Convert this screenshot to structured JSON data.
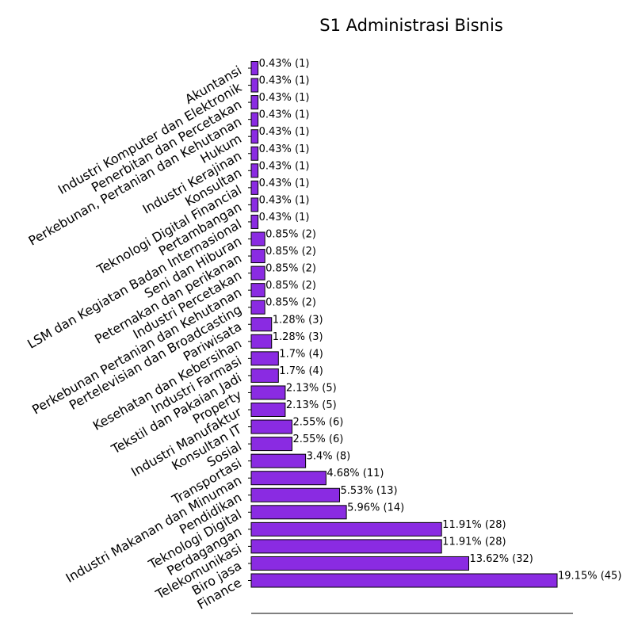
{
  "chart_data": {
    "type": "bar",
    "orientation": "horizontal",
    "title": "S1 Administrasi Bisnis",
    "xlabel": "",
    "ylabel": "",
    "bar_color": "#8a2be2",
    "bar_edge_color": "#000000",
    "xlim": [
      0,
      45
    ],
    "categories": [
      "Finance",
      "Biro jasa",
      "Telekomunikasi",
      "Perdagangan",
      "Teknologi Digital",
      "Pendidikan",
      "Industri Makanan dan Minuman",
      "Transportasi",
      "Sosial",
      "Konsultan IT",
      "Industri Manufaktur",
      "Property",
      "Tekstil dan Pakaian Jadi",
      "Industri Farmasi",
      "Kesehatan dan Kebersihan",
      "Pariwisata",
      "Pertelevisian dan Broadcasting",
      "Perkebunan Pertanian dan Kehutanan",
      "Industri Percetakan",
      "Peternakan dan perikanan",
      "Seni dan Hiburan",
      "LSM dan Kegiatan Badan Internasional",
      "Pertambangan",
      "Teknologi Digital Financial",
      "Konsultan",
      "Industri Kerajinan",
      "Hukum",
      "Perkebunan, Pertanian dan Kehutanan",
      "Penerbitan dan Percetakan",
      "Industri Komputer dan Elektronik",
      "Akuntansi"
    ],
    "values": [
      45,
      32,
      28,
      28,
      14,
      13,
      11,
      8,
      6,
      6,
      5,
      5,
      4,
      4,
      3,
      3,
      2,
      2,
      2,
      2,
      2,
      1,
      1,
      1,
      1,
      1,
      1,
      1,
      1,
      1,
      1
    ],
    "data_labels": [
      "19.15% (45)",
      "13.62% (32)",
      "11.91% (28)",
      "11.91% (28)",
      "5.96% (14)",
      "5.53% (13)",
      "4.68% (11)",
      "3.4% (8)",
      "2.55% (6)",
      "2.55% (6)",
      "2.13% (5)",
      "2.13% (5)",
      "1.7% (4)",
      "1.7% (4)",
      "1.28% (3)",
      "1.28% (3)",
      "0.85% (2)",
      "0.85% (2)",
      "0.85% (2)",
      "0.85% (2)",
      "0.85% (2)",
      "0.43% (1)",
      "0.43% (1)",
      "0.43% (1)",
      "0.43% (1)",
      "0.43% (1)",
      "0.43% (1)",
      "0.43% (1)",
      "0.43% (1)",
      "0.43% (1)",
      "0.43% (1)"
    ],
    "grid": false,
    "legend": "none"
  }
}
